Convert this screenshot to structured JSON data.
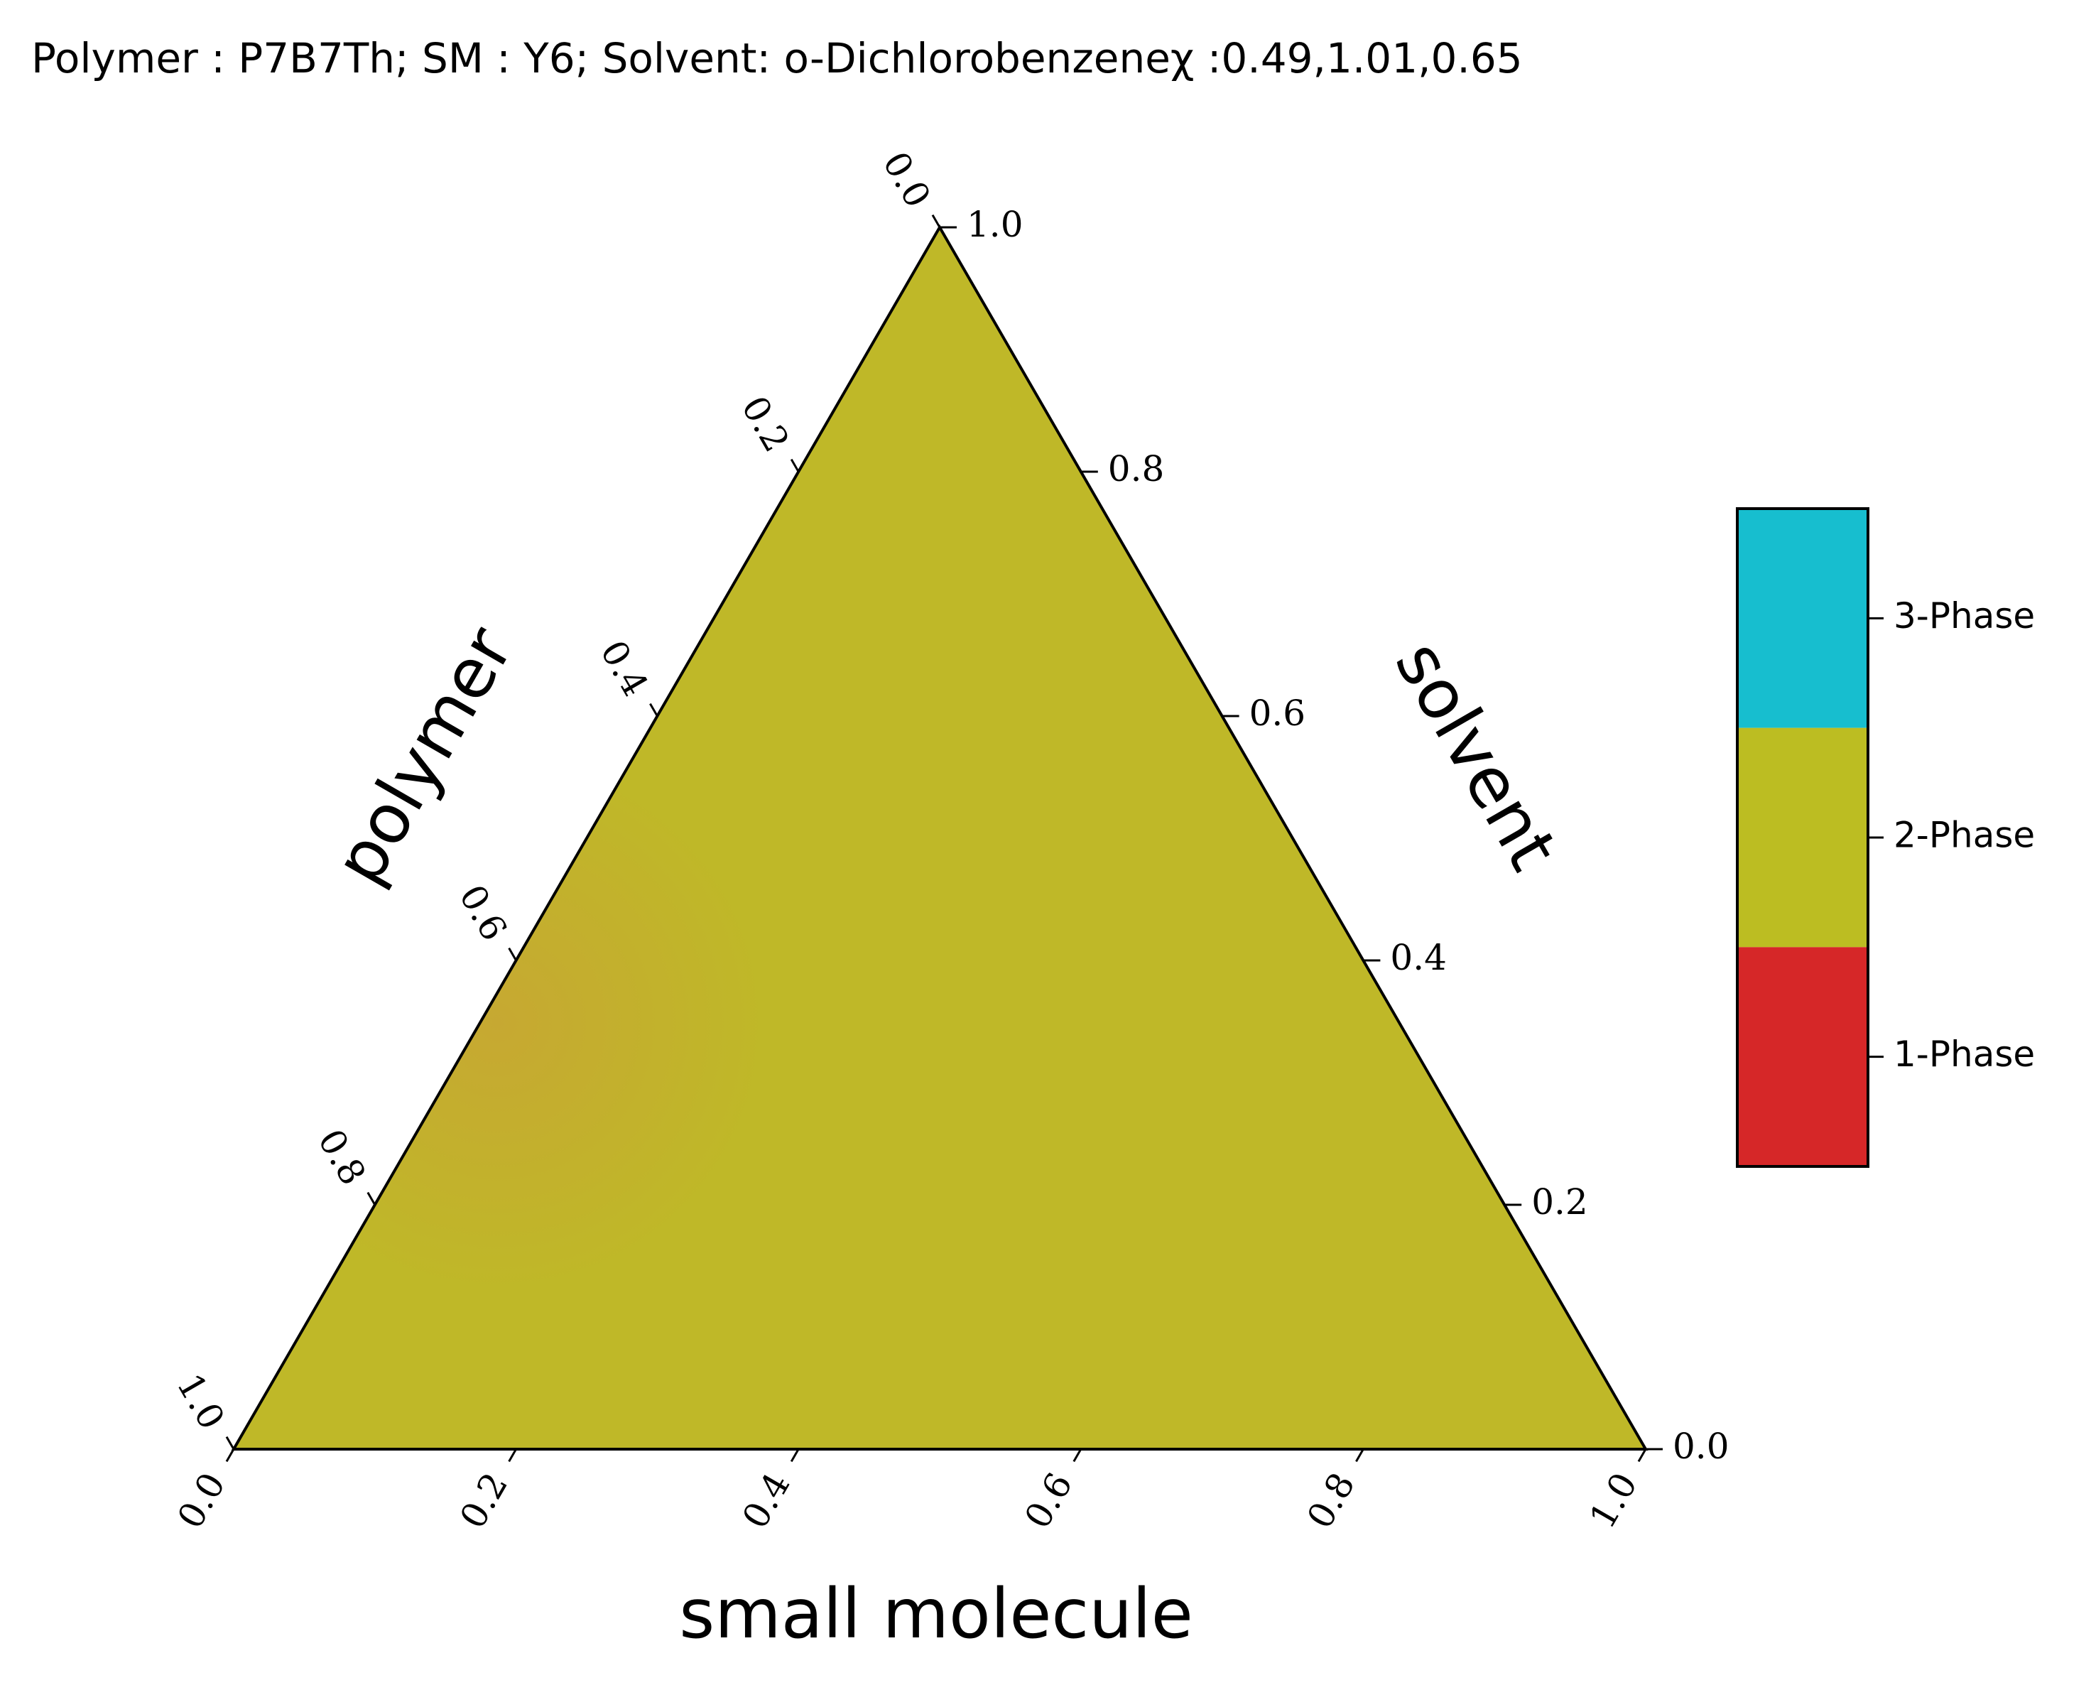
{
  "chart_data": {
    "type": "ternary",
    "title": "Polymer : P7B7Th; SM : Y6; Solvent: o-Dichlorobenzeneχ :0.49,1.01,0.65",
    "axes": {
      "bottom": {
        "label": "small molecule",
        "range": [
          0.0,
          1.0
        ],
        "ticks": [
          "0.0",
          "0.2",
          "0.4",
          "0.6",
          "0.8",
          "1.0"
        ]
      },
      "right": {
        "label": "solvent",
        "range": [
          0.0,
          1.0
        ],
        "ticks": [
          "0.0",
          "0.2",
          "0.4",
          "0.6",
          "0.8",
          "1.0"
        ]
      },
      "left": {
        "label": "polymer",
        "range": [
          0.0,
          1.0
        ],
        "ticks": [
          "0.0",
          "0.2",
          "0.4",
          "0.6",
          "0.8",
          "1.0"
        ]
      }
    },
    "fill": {
      "dominant_phase": "2-Phase",
      "color": "#bfb828",
      "tint_near_polymer_edge": "#c9a335"
    },
    "legend": {
      "placement": "right",
      "entries": [
        {
          "label": "3-Phase",
          "color": "#17becf"
        },
        {
          "label": "2-Phase",
          "color": "#bcbd22"
        },
        {
          "label": "1-Phase",
          "color": "#d62728"
        }
      ]
    }
  }
}
